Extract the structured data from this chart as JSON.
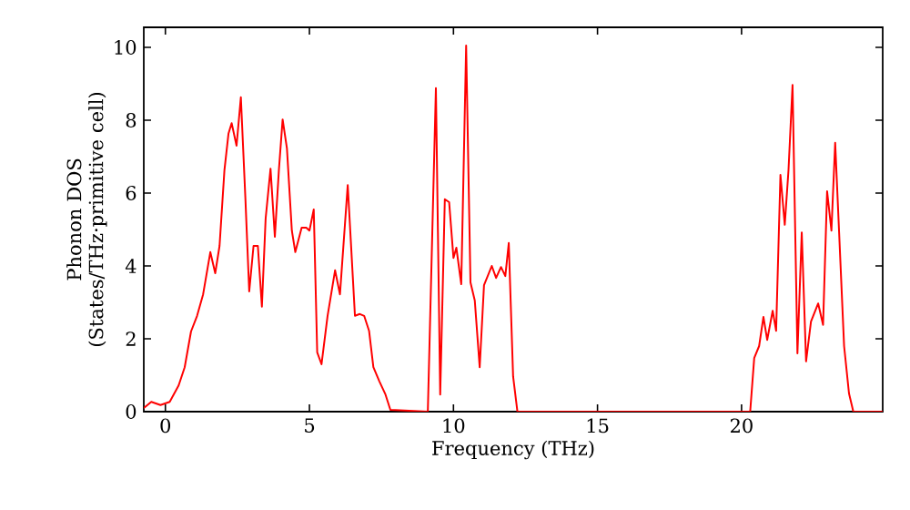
{
  "chart_data": {
    "type": "line",
    "xlabel": "Frequency (THz)",
    "ylabel": "Phonon DOS (States/THz·primitive cell)",
    "xlim": [
      -0.75,
      24.9
    ],
    "ylim": [
      0,
      10.55
    ],
    "xticks": [
      0,
      5,
      10,
      15,
      20
    ],
    "yticks": [
      0,
      2,
      4,
      6,
      8,
      10
    ],
    "grid": false,
    "marker": "none",
    "line_style": "solid",
    "series": [
      {
        "color": "#ff0000",
        "x": [
          -0.75,
          -0.7,
          -0.49,
          -0.17,
          0.15,
          0.46,
          0.67,
          0.89,
          1.1,
          1.31,
          1.56,
          1.73,
          1.88,
          2.05,
          2.19,
          2.3,
          2.47,
          2.62,
          2.78,
          2.91,
          3.06,
          3.21,
          3.35,
          3.48,
          3.65,
          3.8,
          3.94,
          4.07,
          4.22,
          4.39,
          4.51,
          4.73,
          4.89,
          5.0,
          5.15,
          5.27,
          5.42,
          5.63,
          5.89,
          6.06,
          6.33,
          6.58,
          6.75,
          6.9,
          7.07,
          7.22,
          7.43,
          7.64,
          7.81,
          9.11,
          9.39,
          9.54,
          9.7,
          9.85,
          10.0,
          10.1,
          10.27,
          10.44,
          10.59,
          10.74,
          10.91,
          11.06,
          11.33,
          11.48,
          11.65,
          11.8,
          11.92,
          12.07,
          12.22,
          20.3,
          20.44,
          20.61,
          20.76,
          20.89,
          21.08,
          21.2,
          21.35,
          21.5,
          21.63,
          21.77,
          21.94,
          22.09,
          22.24,
          22.41,
          22.66,
          22.83,
          22.97,
          23.12,
          23.25,
          23.56,
          23.73,
          23.88,
          24.9
        ],
        "values": [
          0.1,
          0.13,
          0.27,
          0.18,
          0.27,
          0.72,
          1.22,
          2.2,
          2.63,
          3.22,
          4.38,
          3.8,
          4.55,
          6.63,
          7.63,
          7.92,
          7.3,
          8.63,
          5.8,
          3.3,
          4.55,
          4.55,
          2.88,
          5.3,
          6.67,
          4.8,
          6.63,
          8.02,
          7.22,
          4.97,
          4.38,
          5.05,
          5.05,
          4.97,
          5.55,
          1.63,
          1.3,
          2.63,
          3.88,
          3.22,
          6.22,
          2.63,
          2.68,
          2.63,
          2.22,
          1.22,
          0.83,
          0.47,
          0.05,
          0,
          8.88,
          0.47,
          5.83,
          5.75,
          4.22,
          4.5,
          3.5,
          10.05,
          3.55,
          3.05,
          1.22,
          3.47,
          4.0,
          3.67,
          3.97,
          3.72,
          4.63,
          0.97,
          0,
          0,
          1.47,
          1.8,
          2.6,
          1.97,
          2.77,
          2.22,
          6.5,
          5.13,
          6.63,
          8.97,
          1.6,
          4.92,
          1.38,
          2.47,
          2.97,
          2.38,
          6.05,
          4.97,
          7.38,
          1.8,
          0.5,
          0,
          0
        ]
      }
    ]
  }
}
